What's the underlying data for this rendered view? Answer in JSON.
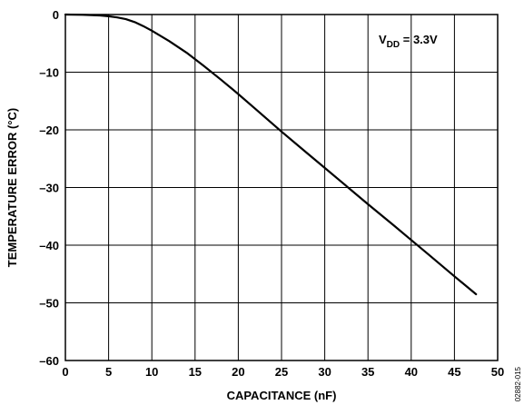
{
  "chart_data": {
    "type": "line",
    "title": "",
    "xlabel": "CAPACITANCE (nF)",
    "ylabel": "TEMPERATURE ERROR (°C)",
    "xlim": [
      0,
      50
    ],
    "ylim": [
      -60,
      0
    ],
    "x_ticks": [
      0,
      5,
      10,
      15,
      20,
      25,
      30,
      35,
      40,
      45,
      50
    ],
    "y_ticks": [
      0,
      -10,
      -20,
      -30,
      -40,
      -50,
      -60
    ],
    "x_tick_labels": [
      "0",
      "5",
      "10",
      "15",
      "20",
      "25",
      "30",
      "35",
      "40",
      "45",
      "50"
    ],
    "y_tick_labels": [
      "0",
      "–10",
      "–20",
      "–30",
      "–40",
      "–50",
      "–60"
    ],
    "grid": true,
    "annotation": {
      "main": "V",
      "subscript": "DD",
      "rest": " = 3.3V"
    },
    "figure_id": "02882-015",
    "series": [
      {
        "x": [
          0,
          2,
          4,
          5,
          6,
          7,
          8,
          9,
          10,
          12,
          14,
          16,
          18,
          20,
          22,
          25,
          28,
          30,
          32,
          35,
          38,
          40,
          42,
          45,
          47.5
        ],
        "y": [
          0,
          -0.05,
          -0.15,
          -0.3,
          -0.5,
          -0.8,
          -1.3,
          -2.0,
          -2.8,
          -4.6,
          -6.6,
          -8.9,
          -11.3,
          -13.8,
          -16.4,
          -20.3,
          -24.1,
          -26.6,
          -29.1,
          -32.9,
          -36.6,
          -39.1,
          -41.6,
          -45.4,
          -48.5
        ]
      }
    ],
    "colors": {
      "line": "#000000",
      "grid": "#000000",
      "background": "#ffffff"
    }
  }
}
